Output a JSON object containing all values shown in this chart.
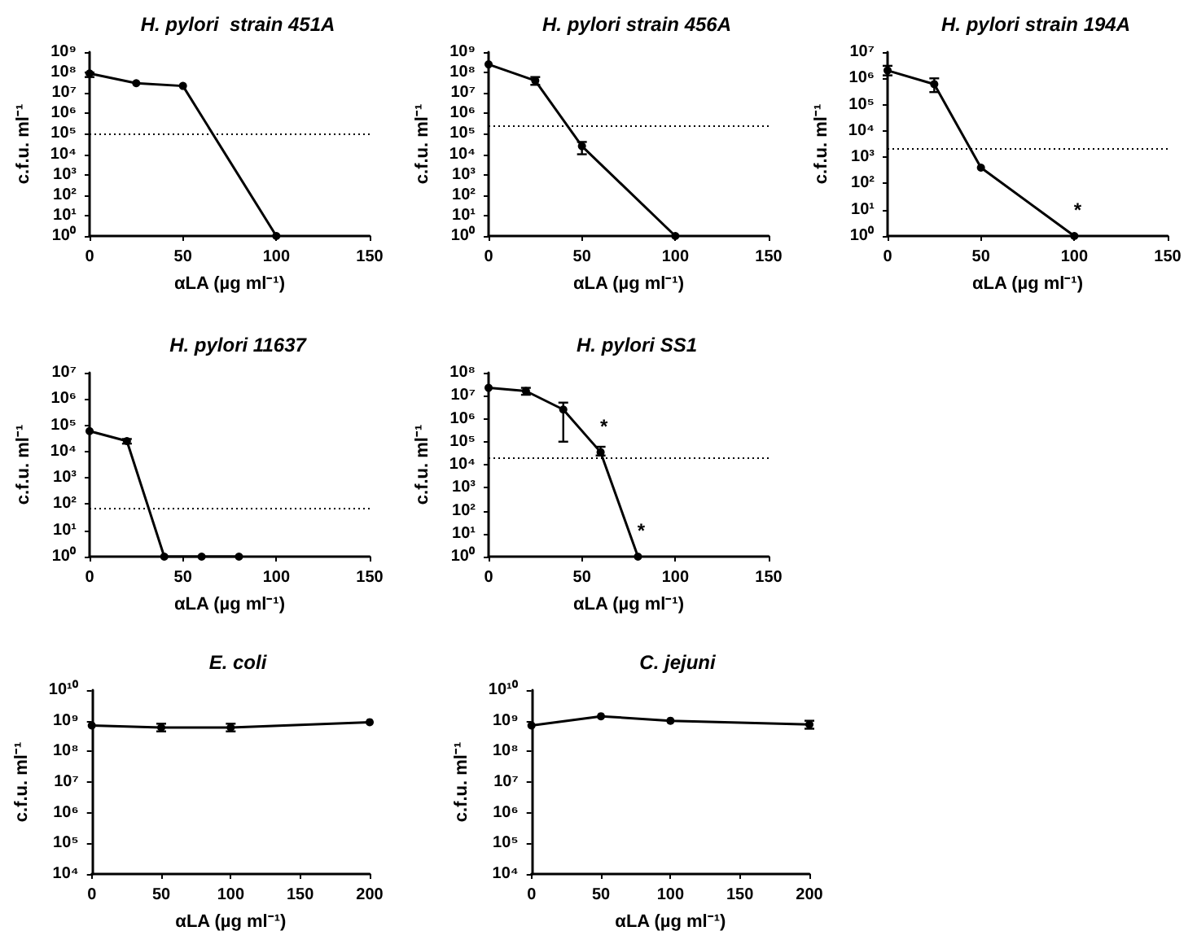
{
  "chart_data": [
    {
      "type": "line",
      "title": "H. pylori  strain 451A",
      "xlabel": "αLA (µg ml⁻¹)",
      "ylabel": "c.f.u. ml⁻¹",
      "x": [
        0,
        25,
        50,
        100
      ],
      "values": [
        90000000,
        30000000,
        22000000,
        1
      ],
      "errors": [
        [
          60000000,
          100000000
        ],
        null,
        null,
        null
      ],
      "color": "#000000",
      "marker": "circle",
      "log": "y",
      "xlim": [
        0,
        150
      ],
      "xticks": [
        0,
        50,
        100,
        150
      ],
      "ylim": [
        1,
        1000000000
      ],
      "yticks": [
        {
          "value": 1,
          "label": "10⁰"
        },
        {
          "value": 10,
          "label": "10¹"
        },
        {
          "value": 100,
          "label": "10²"
        },
        {
          "value": 1000,
          "label": "10³"
        },
        {
          "value": 10000,
          "label": "10⁴"
        },
        {
          "value": 100000,
          "label": "10⁵"
        },
        {
          "value": 1000000,
          "label": "10⁶"
        },
        {
          "value": 10000000,
          "label": "10⁷"
        },
        {
          "value": 100000000,
          "label": "10⁸"
        },
        {
          "value": 1000000000,
          "label": "10⁹"
        }
      ],
      "ref_lines": [
        {
          "axis": "y",
          "value": 100000,
          "line_style": "dotted"
        }
      ],
      "grid": false
    },
    {
      "type": "line",
      "title": "H. pylori strain 456A",
      "xlabel": "αLA (µg ml⁻¹)",
      "ylabel": "c.f.u. ml⁻¹",
      "x": [
        0,
        25,
        50,
        100
      ],
      "values": [
        250000000,
        40000000,
        25000,
        1
      ],
      "errors": [
        null,
        [
          25000000,
          60000000
        ],
        [
          10000,
          40000
        ],
        null
      ],
      "color": "#000000",
      "marker": "circle",
      "log": "y",
      "xlim": [
        0,
        150
      ],
      "xticks": [
        0,
        50,
        100,
        150
      ],
      "ylim": [
        1,
        1000000000
      ],
      "yticks": [
        {
          "value": 1,
          "label": "10⁰"
        },
        {
          "value": 10,
          "label": "10¹"
        },
        {
          "value": 100,
          "label": "10²"
        },
        {
          "value": 1000,
          "label": "10³"
        },
        {
          "value": 10000,
          "label": "10⁴"
        },
        {
          "value": 100000,
          "label": "10⁵"
        },
        {
          "value": 1000000,
          "label": "10⁶"
        },
        {
          "value": 10000000,
          "label": "10⁷"
        },
        {
          "value": 100000000,
          "label": "10⁸"
        },
        {
          "value": 1000000000,
          "label": "10⁹"
        }
      ],
      "ref_lines": [
        {
          "axis": "y",
          "value": 250000,
          "line_style": "dotted"
        }
      ],
      "grid": false
    },
    {
      "type": "line",
      "title": "H. pylori strain 194A",
      "xlabel": "αLA (µg ml⁻¹)",
      "ylabel": "c.f.u. ml⁻¹",
      "x": [
        0,
        25,
        50,
        100
      ],
      "values": [
        2000000,
        600000,
        400,
        1
      ],
      "errors": [
        [
          1300000,
          3000000
        ],
        [
          300000,
          1000000
        ],
        null,
        null
      ],
      "color": "#000000",
      "marker": "circle",
      "log": "y",
      "xlim": [
        0,
        150
      ],
      "xticks": [
        0,
        50,
        100,
        150
      ],
      "ylim": [
        1,
        10000000
      ],
      "yticks": [
        {
          "value": 1,
          "label": "10⁰"
        },
        {
          "value": 10,
          "label": "10¹"
        },
        {
          "value": 100,
          "label": "10²"
        },
        {
          "value": 1000,
          "label": "10³"
        },
        {
          "value": 10000,
          "label": "10⁴"
        },
        {
          "value": 100000,
          "label": "10⁵"
        },
        {
          "value": 1000000,
          "label": "10⁶"
        },
        {
          "value": 10000000,
          "label": "10⁷"
        }
      ],
      "ref_lines": [
        {
          "axis": "y",
          "value": 2000,
          "line_style": "dotted"
        }
      ],
      "annotations": [
        {
          "text": "*",
          "x": 100,
          "y": 1
        }
      ],
      "grid": false
    },
    {
      "type": "line",
      "title": "H. pylori 11637",
      "xlabel": "αLA (µg ml⁻¹)",
      "ylabel": "c.f.u. ml⁻¹",
      "x": [
        0,
        20,
        40,
        60,
        80
      ],
      "values": [
        60000,
        25000,
        1,
        1,
        1
      ],
      "errors": [
        null,
        [
          20000,
          30000
        ],
        null,
        null,
        null
      ],
      "color": "#000000",
      "marker": "circle",
      "log": "y",
      "xlim": [
        0,
        150
      ],
      "xticks": [
        0,
        50,
        100,
        150
      ],
      "ylim": [
        1,
        10000000
      ],
      "yticks": [
        {
          "value": 1,
          "label": "10⁰"
        },
        {
          "value": 10,
          "label": "10¹"
        },
        {
          "value": 100,
          "label": "10²"
        },
        {
          "value": 1000,
          "label": "10³"
        },
        {
          "value": 10000,
          "label": "10⁴"
        },
        {
          "value": 100000,
          "label": "10⁵"
        },
        {
          "value": 1000000,
          "label": "10⁶"
        },
        {
          "value": 10000000,
          "label": "10⁷"
        }
      ],
      "ref_lines": [
        {
          "axis": "y",
          "value": 70,
          "line_style": "dotted"
        }
      ],
      "grid": false
    },
    {
      "type": "line",
      "title": "H. pylori SS1",
      "xlabel": "αLA (µg ml⁻¹)",
      "ylabel": "c.f.u. ml⁻¹",
      "x": [
        0,
        20,
        40,
        60,
        80
      ],
      "values": [
        22000000,
        16000000,
        2500000,
        35000,
        1
      ],
      "errors": [
        null,
        [
          11000000,
          22000000
        ],
        [
          100000,
          5000000
        ],
        [
          25000,
          60000
        ],
        null
      ],
      "color": "#000000",
      "marker": "circle",
      "log": "y",
      "xlim": [
        0,
        150
      ],
      "xticks": [
        0,
        50,
        100,
        150
      ],
      "ylim": [
        1,
        100000000
      ],
      "yticks": [
        {
          "value": 1,
          "label": "10⁰"
        },
        {
          "value": 10,
          "label": "10¹"
        },
        {
          "value": 100,
          "label": "10²"
        },
        {
          "value": 1000,
          "label": "10³"
        },
        {
          "value": 10000,
          "label": "10⁴"
        },
        {
          "value": 100000,
          "label": "10⁵"
        },
        {
          "value": 1000000,
          "label": "10⁶"
        },
        {
          "value": 10000000,
          "label": "10⁷"
        },
        {
          "value": 100000000,
          "label": "10⁸"
        }
      ],
      "ref_lines": [
        {
          "axis": "y",
          "value": 20000,
          "line_style": "dotted"
        }
      ],
      "annotations": [
        {
          "text": "*",
          "x": 60,
          "y": 35000
        },
        {
          "text": "*",
          "x": 80,
          "y": 1
        }
      ],
      "grid": false
    },
    {
      "type": "line",
      "title": "E. coli",
      "xlabel": "αLA (µg ml⁻¹)",
      "ylabel": "c.f.u. ml⁻¹",
      "x": [
        0,
        50,
        100,
        200
      ],
      "values": [
        700000000,
        600000000,
        600000000,
        900000000
      ],
      "errors": [
        null,
        [
          450000000,
          800000000
        ],
        [
          450000000,
          800000000
        ],
        null
      ],
      "color": "#000000",
      "marker": "circle",
      "log": "y",
      "xlim": [
        0,
        200
      ],
      "xticks": [
        0,
        50,
        100,
        150,
        200
      ],
      "ylim": [
        10000,
        10000000000
      ],
      "yticks": [
        {
          "value": 10000,
          "label": "10⁴"
        },
        {
          "value": 100000,
          "label": "10⁵"
        },
        {
          "value": 1000000,
          "label": "10⁶"
        },
        {
          "value": 10000000,
          "label": "10⁷"
        },
        {
          "value": 100000000,
          "label": "10⁸"
        },
        {
          "value": 1000000000,
          "label": "10⁹"
        },
        {
          "value": 10000000000,
          "label": "10¹⁰"
        }
      ],
      "grid": false
    },
    {
      "type": "line",
      "title": "C. jejuni",
      "xlabel": "αLA (µg ml⁻¹)",
      "ylabel": "c.f.u. ml⁻¹",
      "x": [
        0,
        50,
        100,
        200
      ],
      "values": [
        700000000,
        1400000000,
        1000000000,
        750000000
      ],
      "errors": [
        null,
        null,
        null,
        [
          550000000,
          1000000000
        ]
      ],
      "color": "#000000",
      "marker": "circle",
      "log": "y",
      "xlim": [
        0,
        200
      ],
      "xticks": [
        0,
        50,
        100,
        150,
        200
      ],
      "ylim": [
        10000,
        10000000000
      ],
      "yticks": [
        {
          "value": 10000,
          "label": "10⁴"
        },
        {
          "value": 100000,
          "label": "10⁵"
        },
        {
          "value": 1000000,
          "label": "10⁶"
        },
        {
          "value": 10000000,
          "label": "10⁷"
        },
        {
          "value": 100000000,
          "label": "10⁸"
        },
        {
          "value": 1000000000,
          "label": "10⁹"
        },
        {
          "value": 10000000000,
          "label": "10¹⁰"
        }
      ],
      "grid": false
    }
  ]
}
